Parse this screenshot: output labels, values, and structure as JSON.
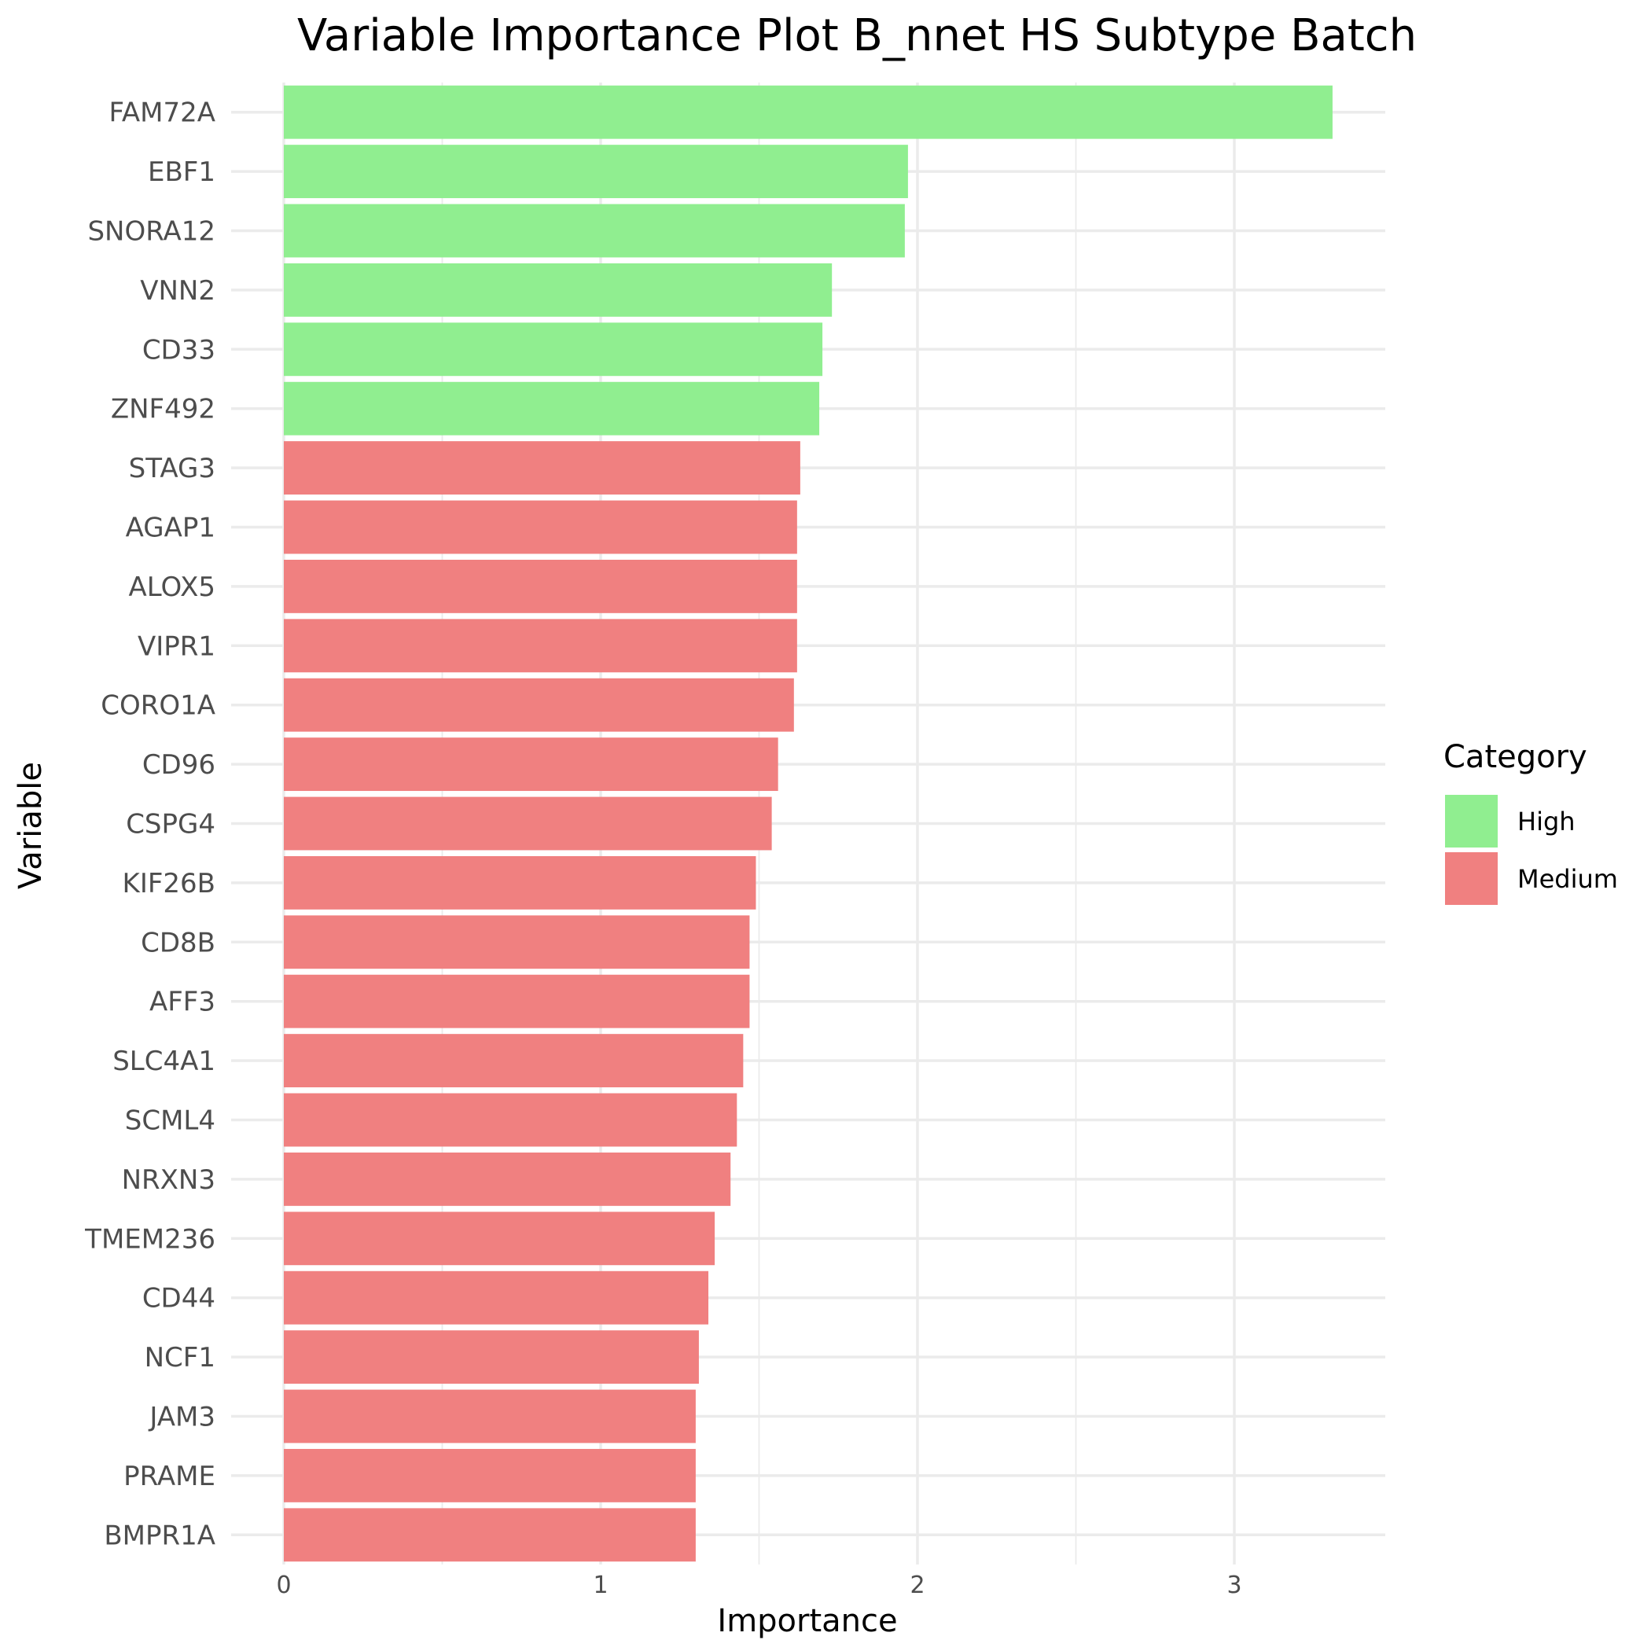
{
  "chart_data": {
    "type": "bar",
    "orientation": "horizontal",
    "title": "Variable Importance Plot B_nnet HS Subtype Batch",
    "xlabel": "Importance",
    "ylabel": "Variable",
    "xlim": [
      0,
      3.48
    ],
    "xticks": [
      0,
      1,
      2,
      3
    ],
    "grid": true,
    "legend": {
      "title": "Category",
      "position": "right",
      "entries": [
        {
          "label": "High",
          "color": "#90EE90"
        },
        {
          "label": "Medium",
          "color": "#F08080"
        }
      ]
    },
    "categories": [
      "FAM72A",
      "EBF1",
      "SNORA12",
      "VNN2",
      "CD33",
      "ZNF492",
      "STAG3",
      "AGAP1",
      "ALOX5",
      "VIPR1",
      "CORO1A",
      "CD96",
      "CSPG4",
      "KIF26B",
      "CD8B",
      "AFF3",
      "SLC4A1",
      "SCML4",
      "NRXN3",
      "TMEM236",
      "CD44",
      "NCF1",
      "JAM3",
      "PRAME",
      "BMPR1A"
    ],
    "values": [
      3.31,
      1.97,
      1.96,
      1.73,
      1.7,
      1.69,
      1.63,
      1.62,
      1.62,
      1.62,
      1.61,
      1.56,
      1.54,
      1.49,
      1.47,
      1.47,
      1.45,
      1.43,
      1.41,
      1.36,
      1.34,
      1.31,
      1.3,
      1.3,
      1.3
    ],
    "category_labels": [
      "High",
      "High",
      "High",
      "High",
      "High",
      "High",
      "Medium",
      "Medium",
      "Medium",
      "Medium",
      "Medium",
      "Medium",
      "Medium",
      "Medium",
      "Medium",
      "Medium",
      "Medium",
      "Medium",
      "Medium",
      "Medium",
      "Medium",
      "Medium",
      "Medium",
      "Medium",
      "Medium"
    ]
  }
}
